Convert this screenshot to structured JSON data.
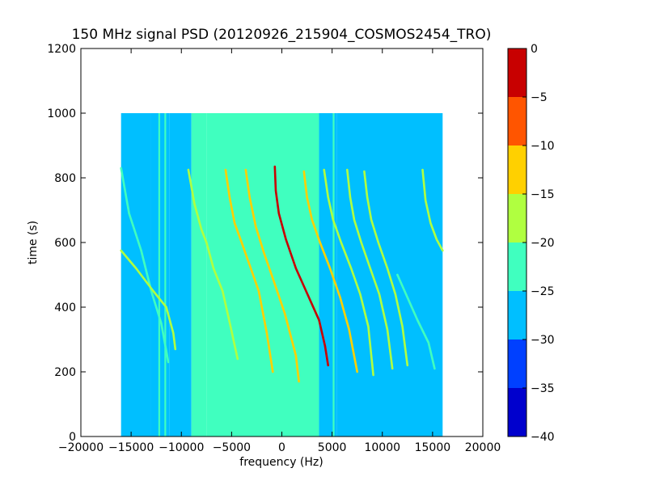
{
  "chart_data": {
    "type": "heatmap",
    "title": "150 MHz signal PSD (20120926_215904_COSMOS2454_TRO)",
    "xlabel": "frequency (Hz)",
    "ylabel": "time (s)",
    "xlim": [
      -20000,
      20000
    ],
    "ylim": [
      0,
      1200
    ],
    "xticks": [
      -20000,
      -15000,
      -10000,
      -5000,
      0,
      5000,
      10000,
      15000,
      20000
    ],
    "yticks": [
      0,
      200,
      400,
      600,
      800,
      1000,
      1200
    ],
    "data_extent": {
      "x": [
        -16000,
        16000
      ],
      "y": [
        0,
        1000
      ]
    },
    "grid": false,
    "colorbar": {
      "min": -40,
      "max": 0,
      "levels": [
        -40,
        -35,
        -30,
        -25,
        -20,
        -15,
        -10,
        -5,
        0
      ],
      "ticks": [
        0,
        -5,
        -10,
        -15,
        -20,
        -25,
        -30,
        -35,
        -40
      ],
      "colors": [
        "#0000cd",
        "#0040ff",
        "#00bfff",
        "#40ffbf",
        "#b0ff40",
        "#ffd000",
        "#ff5500",
        "#c80000"
      ]
    },
    "background_bands": [
      {
        "x": [
          -16000,
          -13000
        ],
        "value": -26
      },
      {
        "x": [
          -13000,
          -11200
        ],
        "value": -27
      },
      {
        "x": [
          -11200,
          -9000
        ],
        "value": -26
      },
      {
        "x": [
          -9000,
          -7500
        ],
        "value": -25
      },
      {
        "x": [
          -7500,
          3700
        ],
        "value": -23
      },
      {
        "x": [
          3700,
          5500
        ],
        "value": -26
      },
      {
        "x": [
          5500,
          16000
        ],
        "value": -27
      }
    ],
    "vertical_lines": [
      {
        "x": -12200,
        "value": -21
      },
      {
        "x": -11600,
        "value": -21
      },
      {
        "x": 5150,
        "value": -22
      }
    ],
    "traces": [
      {
        "name": "",
        "points": [
          [
            -16000,
            830
          ],
          [
            -15200,
            690
          ],
          [
            -14000,
            575
          ],
          [
            -13000,
            450
          ],
          [
            -12000,
            350
          ],
          [
            -11300,
            230
          ]
        ],
        "value": -21
      },
      {
        "name": "",
        "points": [
          [
            -16000,
            575
          ],
          [
            -14500,
            520
          ],
          [
            -12800,
            450
          ],
          [
            -11500,
            400
          ],
          [
            -10800,
            320
          ],
          [
            -10600,
            270
          ]
        ],
        "value": -20
      },
      {
        "name": "",
        "points": [
          [
            -9300,
            825
          ],
          [
            -8700,
            720
          ],
          [
            -8000,
            640
          ],
          [
            -7500,
            600
          ],
          [
            -6800,
            520
          ],
          [
            -5900,
            450
          ],
          [
            -5100,
            340
          ],
          [
            -4400,
            240
          ]
        ],
        "value": -19
      },
      {
        "name": "",
        "points": [
          [
            -5600,
            825
          ],
          [
            -5200,
            740
          ],
          [
            -4700,
            660
          ],
          [
            -4000,
            600
          ],
          [
            -3200,
            530
          ],
          [
            -2300,
            450
          ],
          [
            -1500,
            320
          ],
          [
            -900,
            200
          ]
        ],
        "value": -13
      },
      {
        "name": "",
        "points": [
          [
            -3600,
            825
          ],
          [
            -3200,
            740
          ],
          [
            -2600,
            650
          ],
          [
            -1800,
            570
          ],
          [
            -800,
            480
          ],
          [
            300,
            380
          ],
          [
            1400,
            250
          ],
          [
            1700,
            170
          ]
        ],
        "value": -13
      },
      {
        "name": "",
        "points": [
          [
            -700,
            835
          ],
          [
            -600,
            760
          ],
          [
            -300,
            690
          ],
          [
            400,
            610
          ],
          [
            1400,
            520
          ],
          [
            2700,
            430
          ],
          [
            3700,
            360
          ],
          [
            4300,
            280
          ],
          [
            4600,
            220
          ]
        ],
        "value": -5
      },
      {
        "name": "",
        "points": [
          [
            2200,
            820
          ],
          [
            2500,
            740
          ],
          [
            3000,
            670
          ],
          [
            3800,
            600
          ],
          [
            4800,
            520
          ],
          [
            5800,
            430
          ],
          [
            6700,
            330
          ],
          [
            7500,
            200
          ]
        ],
        "value": -13
      },
      {
        "name": "",
        "points": [
          [
            4200,
            825
          ],
          [
            4600,
            740
          ],
          [
            5100,
            670
          ],
          [
            5900,
            600
          ],
          [
            6900,
            520
          ],
          [
            7800,
            440
          ],
          [
            8600,
            340
          ],
          [
            9100,
            190
          ]
        ],
        "value": -16
      },
      {
        "name": "",
        "points": [
          [
            6500,
            825
          ],
          [
            6800,
            740
          ],
          [
            7200,
            670
          ],
          [
            7900,
            600
          ],
          [
            8800,
            520
          ],
          [
            9700,
            440
          ],
          [
            10500,
            330
          ],
          [
            11000,
            210
          ]
        ],
        "value": -18
      },
      {
        "name": "",
        "points": [
          [
            8200,
            820
          ],
          [
            8500,
            740
          ],
          [
            8900,
            670
          ],
          [
            9600,
            600
          ],
          [
            10500,
            520
          ],
          [
            11300,
            440
          ],
          [
            12000,
            340
          ],
          [
            12500,
            220
          ]
        ],
        "value": -18
      },
      {
        "name": "",
        "points": [
          [
            11500,
            500
          ],
          [
            12500,
            430
          ],
          [
            13500,
            360
          ],
          [
            14600,
            290
          ],
          [
            15200,
            210
          ]
        ],
        "value": -22
      },
      {
        "name": "",
        "points": [
          [
            14000,
            825
          ],
          [
            14300,
            730
          ],
          [
            14800,
            660
          ],
          [
            15400,
            610
          ],
          [
            16000,
            575
          ]
        ],
        "value": -20
      }
    ]
  }
}
